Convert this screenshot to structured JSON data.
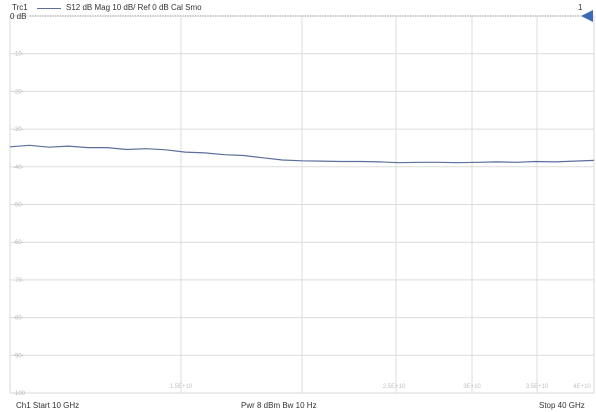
{
  "header": {
    "trace_name": "Trc1",
    "trace_params": "S12  dB Mag  10 dB/ Ref 0 dB  Cal Smo",
    "trace_number": "1",
    "ref_label": "0 dB"
  },
  "footer": {
    "left": "Ch1  Start  10 GHz",
    "center": "Pwr  8 dBm  Bw  10 Hz",
    "right": "Stop  40 GHz"
  },
  "colors": {
    "trace": "#5b6e9c",
    "grid": "#dcdcdc",
    "ref_marker": "#3f6bb3"
  },
  "chart_data": {
    "type": "line",
    "title": "",
    "xlabel": "",
    "ylabel": "",
    "xlim": [
      10,
      40
    ],
    "ylim": [
      -100,
      0
    ],
    "grid": true,
    "y_ticks": [
      -10,
      -20,
      -30,
      -40,
      -50,
      -60,
      -70,
      -80,
      -90,
      -100
    ],
    "y_tick_labels": [
      "-10-",
      "-20-",
      "-30-",
      "-40-",
      "-50-",
      "-60-",
      "-70-",
      "-80-",
      "-90-",
      "-100"
    ],
    "x_tick_labels": [
      "1.5E+10",
      "2.5E+10",
      "3E+10",
      "3.5E+10",
      "4E+10"
    ],
    "series": [
      {
        "x": [
          10,
          11,
          12,
          13,
          14,
          15,
          16,
          17,
          18,
          19,
          20,
          21,
          22,
          23,
          24,
          25,
          26,
          27,
          28,
          29,
          30,
          31,
          32,
          33,
          34,
          35,
          36,
          37,
          38,
          39,
          40
        ],
        "values": [
          -34.7,
          -34.3,
          -34.8,
          -34.5,
          -34.9,
          -34.9,
          -35.4,
          -35.2,
          -35.5,
          -36.1,
          -36.3,
          -36.8,
          -37.0,
          -37.6,
          -38.2,
          -38.4,
          -38.5,
          -38.6,
          -38.6,
          -38.7,
          -38.9,
          -38.8,
          -38.8,
          -38.9,
          -38.8,
          -38.7,
          -38.8,
          -38.6,
          -38.7,
          -38.5,
          -38.3
        ]
      }
    ]
  }
}
